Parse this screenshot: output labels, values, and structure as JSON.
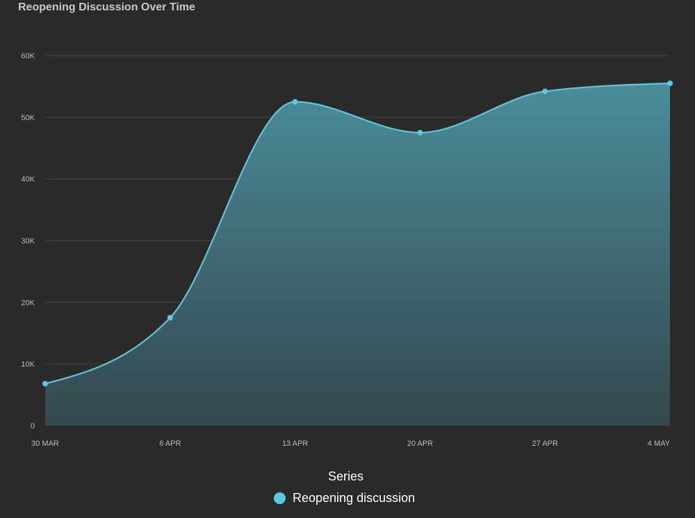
{
  "chart_data": {
    "type": "area",
    "title": "Reopening Discussion Over Time",
    "x": [
      "30 MAR",
      "6 APR",
      "13 APR",
      "20 APR",
      "27 APR",
      "4 MAY"
    ],
    "series": [
      {
        "name": "Reopening discussion",
        "values": [
          6800,
          17500,
          52500,
          47500,
          54200,
          55500
        ]
      }
    ],
    "ylim": [
      0,
      60000
    ],
    "yticks": [
      0,
      10000,
      20000,
      30000,
      40000,
      50000,
      60000
    ],
    "ytick_labels": [
      "0",
      "10K",
      "20K",
      "30K",
      "40K",
      "50K",
      "60K"
    ],
    "grid": true,
    "legend": {
      "title": "Series",
      "position": "bottom-center"
    },
    "colors": {
      "line": "#5bc8e2",
      "fill_top": "#4a8d9a",
      "fill_bottom": "#35474d",
      "background": "#2a2a2a",
      "grid": "#444444"
    }
  }
}
